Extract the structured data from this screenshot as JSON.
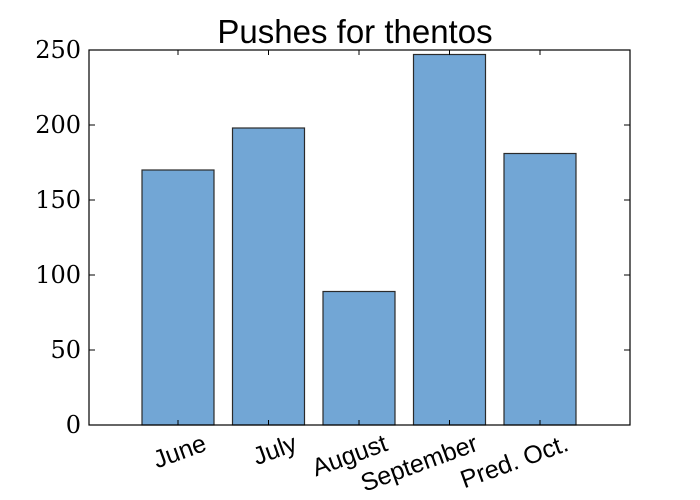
{
  "chart_data": {
    "type": "bar",
    "title": "Pushes for thentos",
    "categories": [
      "June",
      "July",
      "August",
      "September",
      "Pred. Oct."
    ],
    "values": [
      170,
      198,
      89,
      247,
      181
    ],
    "xlabel": "",
    "ylabel": "",
    "ylim": [
      0,
      250
    ],
    "yticks": [
      "0",
      "50",
      "100",
      "150",
      "200",
      "250"
    ],
    "bar_color": "#72a6d5",
    "bar_edge_color": "#2b2b2b",
    "grid": false,
    "legend": "none"
  }
}
